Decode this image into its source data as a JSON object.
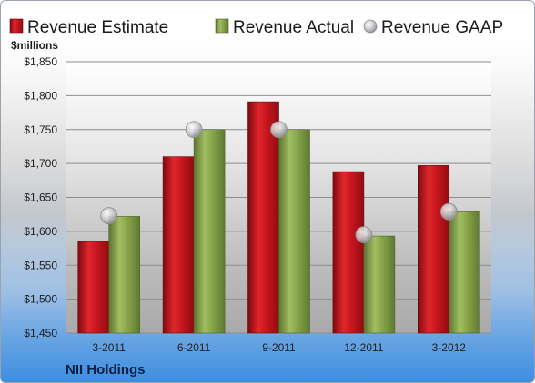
{
  "chart_data": {
    "type": "bar",
    "title": "",
    "company": "NII Holdings",
    "ylabel": "$millions",
    "xlabel": "",
    "ylim": [
      1450,
      1850
    ],
    "ytick_step": 50,
    "ytick_labels": [
      "$1,450",
      "$1,500",
      "$1,550",
      "$1,600",
      "$1,650",
      "$1,700",
      "$1,750",
      "$1,800",
      "$1,850"
    ],
    "categories": [
      "3-2011",
      "6-2011",
      "9-2011",
      "12-2011",
      "3-2012"
    ],
    "series": [
      {
        "name": "Revenue Estimate",
        "kind": "bar",
        "color": "#c8161e",
        "values": [
          1585,
          1710,
          1791,
          1688,
          1697
        ]
      },
      {
        "name": "Revenue Actual",
        "kind": "bar",
        "color": "#86a44a",
        "values": [
          1622,
          1750,
          1750,
          1593,
          1629
        ]
      },
      {
        "name": "Revenue GAAP",
        "kind": "marker",
        "color": "#b8b8bc",
        "values": [
          1623,
          1750,
          1750,
          1595,
          1629
        ]
      }
    ],
    "grid": true,
    "legend_position": "top"
  }
}
